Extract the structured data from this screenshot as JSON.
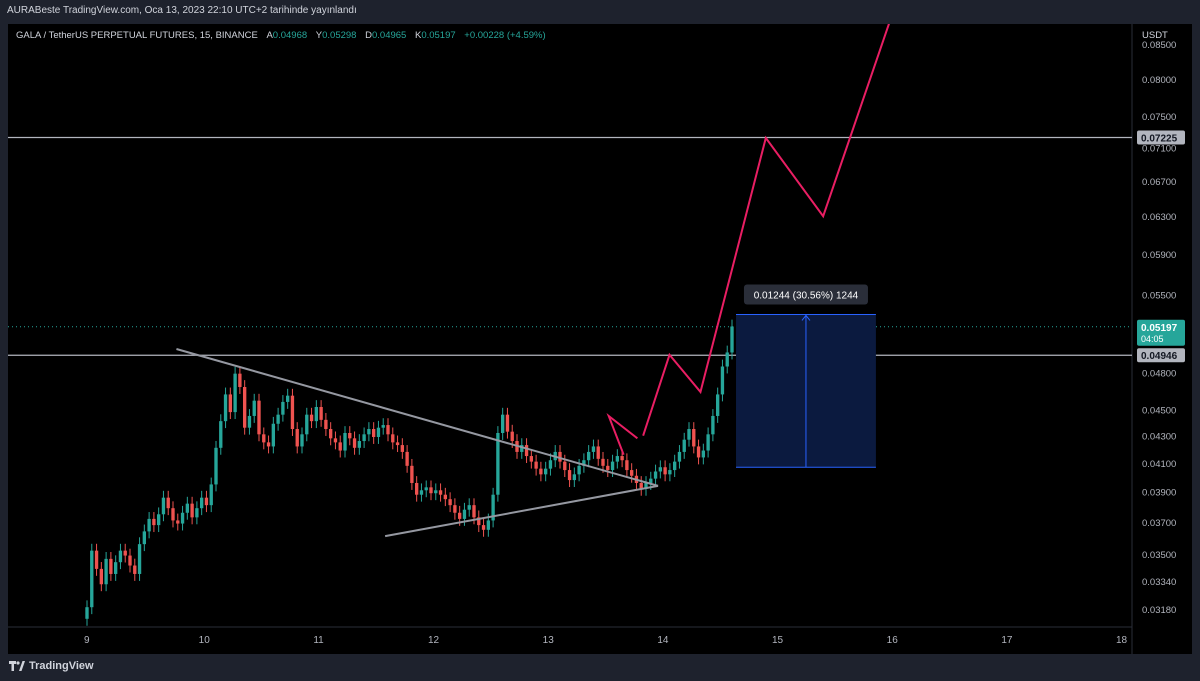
{
  "header": {
    "published_text": "AURABeste TradingView.com, Oca 13, 2023 22:10 UTC+2 tarihinde yayınlandı"
  },
  "legend": {
    "symbol": "GALA / TetherUS PERPETUAL FUTURES, 15, BINANCE",
    "open_label": "A",
    "open": "0.04968",
    "high_label": "Y",
    "high": "0.05298",
    "low_label": "D",
    "low": "0.04965",
    "close_label": "K",
    "close": "0.05197",
    "change": "+0.00228 (+4.59%)"
  },
  "footer": {
    "brand": "TradingView"
  },
  "colors": {
    "background": "#000000",
    "up": "#26a69a",
    "down": "#ef5350",
    "projection": "#e91e63",
    "trendline": "#9598a1",
    "hline": "#b2b5be",
    "measure_fill": "#0b1a3f",
    "measure_line": "#2962ff"
  },
  "chart_data": {
    "type": "candlestick",
    "y_axis": {
      "unit": "USDT",
      "scale": "log",
      "ticks": [
        "0.08500",
        "0.08000",
        "0.07500",
        "0.07100",
        "0.06700",
        "0.06300",
        "0.05900",
        "0.05500",
        "0.04800",
        "0.04500",
        "0.04300",
        "0.04100",
        "0.03900",
        "0.03700",
        "0.03500",
        "0.03340",
        "0.03180"
      ]
    },
    "x_axis": {
      "ticks": [
        "9",
        "10",
        "11",
        "12",
        "13",
        "14",
        "15",
        "16",
        "17",
        "18"
      ]
    },
    "price_labels": [
      {
        "text": "0.07225",
        "value": 0.07225,
        "kind": "hline"
      },
      {
        "text": "0.05197",
        "value": 0.05197,
        "kind": "last",
        "countdown": "04:05"
      },
      {
        "text": "0.04946",
        "value": 0.04946,
        "kind": "hline"
      }
    ],
    "horizontal_lines": [
      0.07225,
      0.04946
    ],
    "last_price": 0.05197,
    "triangle": {
      "upper": [
        {
          "day": 9.78,
          "price": 0.05
        },
        {
          "day": 13.98,
          "price": 0.0394
        }
      ],
      "lower": [
        {
          "day": 11.6,
          "price": 0.0361
        },
        {
          "day": 13.98,
          "price": 0.0394
        }
      ]
    },
    "projection_path": [
      {
        "day": 13.8,
        "price": 0.0428
      },
      {
        "day": 13.55,
        "price": 0.0445
      },
      {
        "day": 13.68,
        "price": 0.0416
      }
    ],
    "projection_main": [
      {
        "day": 13.85,
        "price": 0.043
      },
      {
        "day": 14.08,
        "price": 0.0495
      },
      {
        "day": 14.35,
        "price": 0.0464
      },
      {
        "day": 14.92,
        "price": 0.0722
      },
      {
        "day": 15.42,
        "price": 0.063
      },
      {
        "day": 16.05,
        "price": 0.091
      }
    ],
    "measure": {
      "label": "0.01244 (30.56%) 1244",
      "day_start": 14.66,
      "day_end": 15.88,
      "price_low": 0.0407,
      "price_high": 0.0531
    },
    "candles": {
      "start_day": 9.0,
      "interval_days": 0.0416667,
      "first_close": 0.0319,
      "closes": [
        0.0319,
        0.0352,
        0.0341,
        0.0332,
        0.0347,
        0.0338,
        0.0345,
        0.0352,
        0.0349,
        0.0343,
        0.0338,
        0.0356,
        0.0364,
        0.0372,
        0.0368,
        0.0375,
        0.0386,
        0.0379,
        0.0371,
        0.0369,
        0.0376,
        0.0382,
        0.0373,
        0.0379,
        0.0386,
        0.0381,
        0.0395,
        0.0421,
        0.0441,
        0.0462,
        0.0448,
        0.0479,
        0.0468,
        0.0436,
        0.0445,
        0.0457,
        0.0431,
        0.0425,
        0.0422,
        0.0439,
        0.0446,
        0.0456,
        0.0461,
        0.0435,
        0.0422,
        0.0431,
        0.0446,
        0.0441,
        0.0452,
        0.0442,
        0.0435,
        0.0428,
        0.0425,
        0.0419,
        0.0432,
        0.0428,
        0.0421,
        0.0426,
        0.0431,
        0.0435,
        0.0429,
        0.0436,
        0.0438,
        0.0431,
        0.0425,
        0.0423,
        0.0418,
        0.0408,
        0.0396,
        0.0388,
        0.0391,
        0.0393,
        0.0389,
        0.0391,
        0.0388,
        0.0385,
        0.0381,
        0.0376,
        0.0372,
        0.0378,
        0.0381,
        0.0373,
        0.0368,
        0.0365,
        0.0371,
        0.0388,
        0.0432,
        0.0446,
        0.0433,
        0.0426,
        0.0418,
        0.0423,
        0.0415,
        0.0411,
        0.0406,
        0.0402,
        0.0406,
        0.0412,
        0.0418,
        0.0411,
        0.0405,
        0.0398,
        0.0402,
        0.0408,
        0.0412,
        0.0418,
        0.0422,
        0.0413,
        0.0408,
        0.0405,
        0.0411,
        0.0415,
        0.0412,
        0.0405,
        0.0401,
        0.0396,
        0.0392,
        0.0396,
        0.0399,
        0.0404,
        0.0407,
        0.0402,
        0.0405,
        0.0411,
        0.0418,
        0.0427,
        0.0435,
        0.0422,
        0.0414,
        0.0419,
        0.0431,
        0.0445,
        0.0462,
        0.0485,
        0.0497,
        0.052
      ]
    }
  }
}
